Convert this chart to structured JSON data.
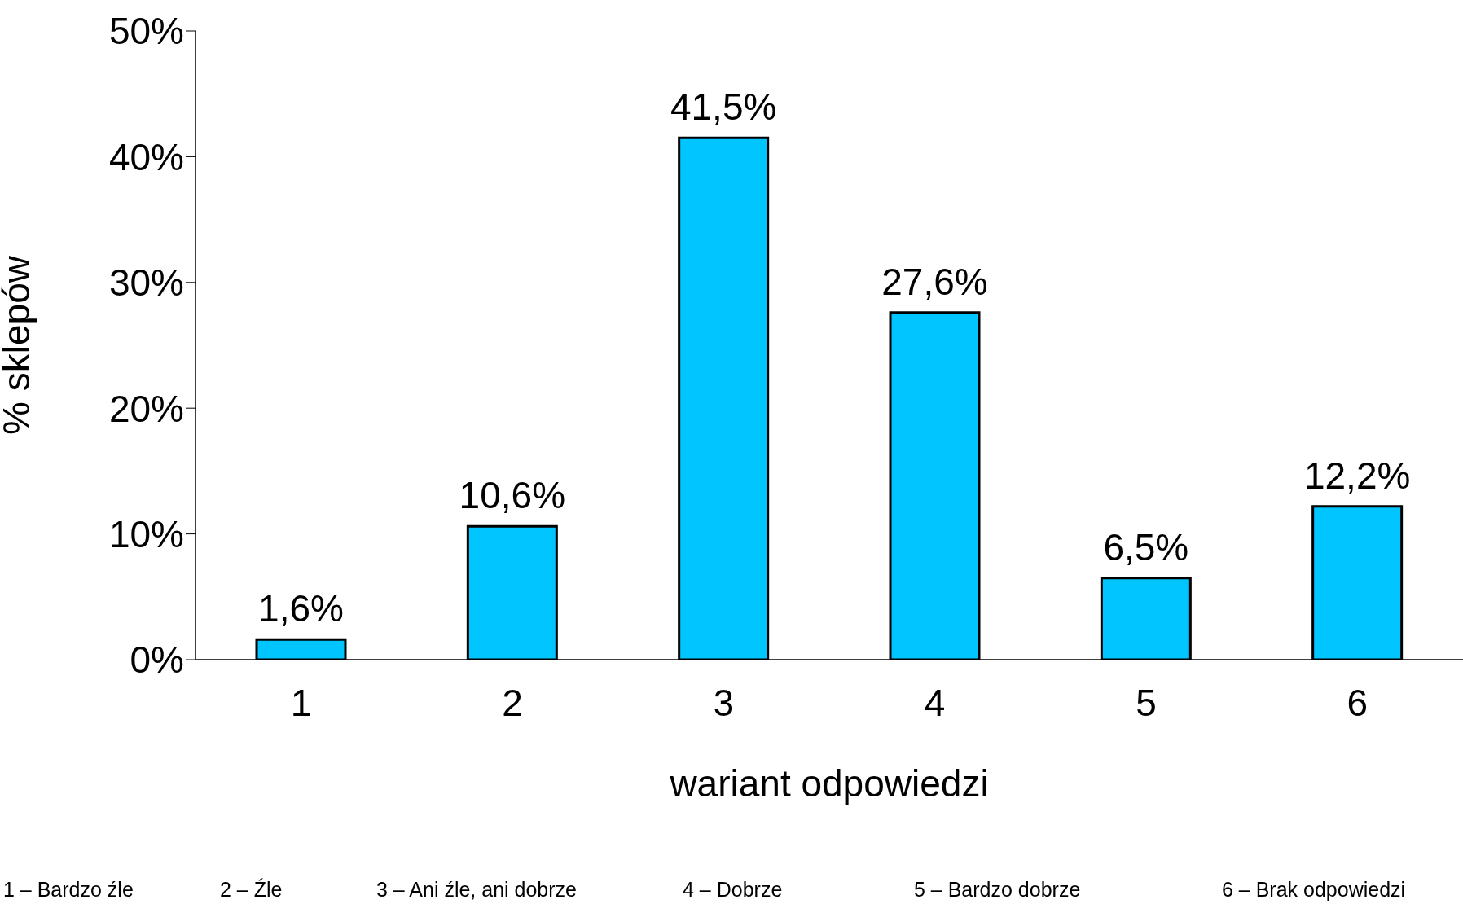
{
  "chart_data": {
    "type": "bar",
    "ylabel": "% sklepów",
    "xlabel": "wariant odpowiedzi",
    "categories": [
      "1",
      "2",
      "3",
      "4",
      "5",
      "6"
    ],
    "values": [
      1.6,
      10.6,
      41.5,
      27.6,
      6.5,
      12.2
    ],
    "value_labels": [
      "1,6%",
      "10,6%",
      "41,5%",
      "27,6%",
      "6,5%",
      "12,2%"
    ],
    "color": "#00c5ff",
    "ylim": [
      0,
      50
    ],
    "yticks": [
      {
        "value": 0,
        "label": "0%"
      },
      {
        "value": 10,
        "label": "10%"
      },
      {
        "value": 20,
        "label": "20%"
      },
      {
        "value": 30,
        "label": "30%"
      },
      {
        "value": 40,
        "label": "40%"
      },
      {
        "value": 50,
        "label": "50%"
      }
    ],
    "grid": false,
    "legend": false,
    "annotations": [
      "1 – Bardzo źle",
      "2 – Źle",
      "3 – Ani źle, ani dobrze",
      "4 – Dobrze",
      "5 – Bardzo dobrze",
      "6 – Brak odpowiedzi"
    ]
  }
}
